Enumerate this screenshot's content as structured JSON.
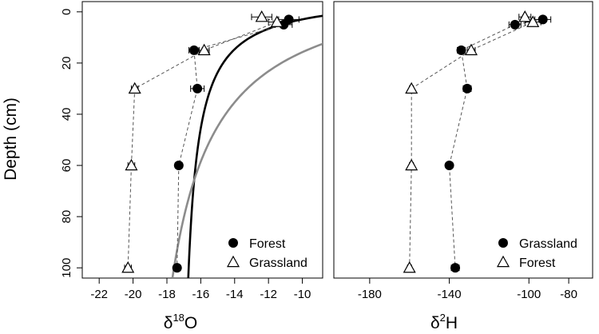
{
  "chart_data": [
    {
      "type": "scatter",
      "xlabel_main": "δ",
      "xlabel_sup": "18",
      "xlabel_sub": "O",
      "ylabel": "Depth (cm)",
      "xlim": [
        -23,
        -8.8
      ],
      "ylim": [
        104,
        -4
      ],
      "x_ticks": [
        -22,
        -20,
        -18,
        -16,
        -14,
        -12,
        -10
      ],
      "y_ticks": [
        0,
        20,
        40,
        60,
        80,
        100
      ],
      "grid": false,
      "legend_position": "bottom-right",
      "series": [
        {
          "name": "Forest",
          "marker": "filled-circle",
          "color": "#000000",
          "line": "dashed",
          "depth": [
            3,
            5,
            15,
            30,
            60,
            100
          ],
          "x": [
            -10.8,
            -11.1,
            -16.4,
            -16.2,
            -17.3,
            -17.4
          ],
          "x_err": [
            0.6,
            0.5,
            0.3,
            0.4,
            0.2,
            0.2
          ]
        },
        {
          "name": "Grassland",
          "marker": "open-triangle",
          "color": "#000000",
          "line": "dashed",
          "depth": [
            2,
            4,
            15,
            30,
            60,
            100
          ],
          "x": [
            -12.4,
            -11.5,
            -15.8,
            -19.9,
            -20.1,
            -20.3
          ],
          "x_err": [
            0.6,
            0.5,
            0.3,
            0.2,
            0.2,
            0.2
          ]
        }
      ],
      "fitted_curves": [
        {
          "for": "Forest",
          "color": "#000000",
          "asymptote": -17.4
        },
        {
          "for": "Grassland",
          "color": "#8c8c8c",
          "asymptote": -20.4
        }
      ]
    },
    {
      "type": "scatter",
      "xlabel_main": "δ",
      "xlabel_sup": "2",
      "xlabel_sub": "H",
      "xlim": [
        -198,
        -68
      ],
      "ylim": [
        104,
        -4
      ],
      "x_ticks": [
        -180,
        -140,
        -100,
        -80
      ],
      "y_ticks": [
        0,
        20,
        40,
        60,
        80,
        100
      ],
      "grid": false,
      "legend_position": "bottom-right",
      "series": [
        {
          "name": "Grassland",
          "marker": "filled-circle",
          "color": "#000000",
          "line": "dashed",
          "depth": [
            3,
            5,
            15,
            30,
            60,
            100
          ],
          "x": [
            -93,
            -107,
            -134,
            -131,
            -140,
            -137
          ],
          "x_err": [
            4,
            3,
            2,
            2,
            1,
            2
          ]
        },
        {
          "name": "Forest",
          "marker": "open-triangle",
          "color": "#000000",
          "line": "dashed",
          "depth": [
            2,
            4,
            15,
            30,
            60,
            100
          ],
          "x": [
            -102,
            -98,
            -129,
            -159,
            -159,
            -160
          ],
          "x_err": [
            3,
            4,
            2,
            1,
            1,
            1
          ]
        }
      ]
    }
  ]
}
